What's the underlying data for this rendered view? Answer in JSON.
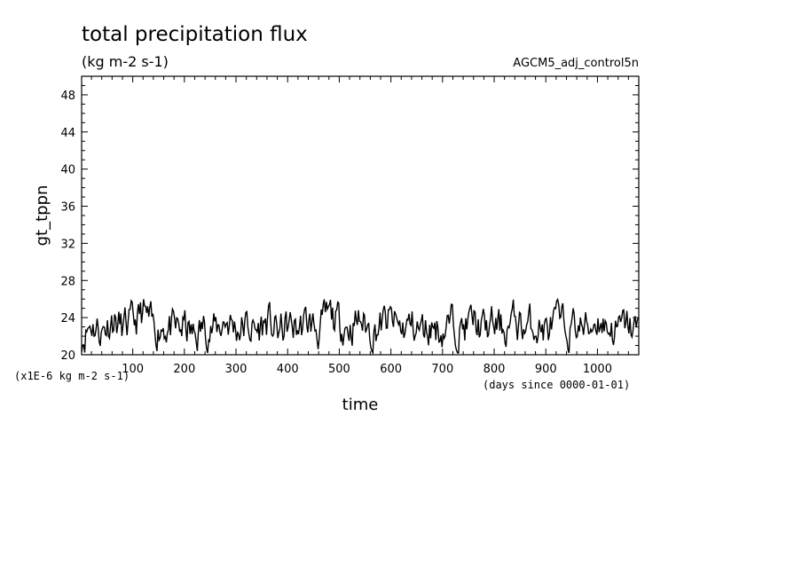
{
  "chart_data": {
    "type": "line",
    "title": "total precipitation flux",
    "subtitle": "(kg m-2 s-1)",
    "run_label": "AGCM5_adj_control5n",
    "xlabel": "time",
    "ylabel": "gt_tppn",
    "y_unit_note": "(x1E-6 kg m-2 s-1)",
    "x_unit_note": "(days since 0000-01-01)",
    "xlim": [
      1,
      1080
    ],
    "ylim": [
      20,
      50
    ],
    "xticks_labeled": [
      100,
      200,
      300,
      400,
      500,
      600,
      700,
      800,
      900,
      1000
    ],
    "yticks_labeled": [
      20,
      24,
      28,
      32,
      36,
      40,
      44,
      48
    ],
    "grid": false,
    "legend": "none",
    "line_color": "#000000",
    "series": [
      {
        "x": [
          1,
          20,
          40,
          60,
          80,
          100,
          120,
          140,
          160,
          180,
          200,
          220,
          240,
          260,
          280,
          300,
          320,
          340,
          360,
          380,
          400,
          420,
          440,
          460,
          480,
          500,
          520,
          540,
          560,
          580,
          600,
          620,
          640,
          660,
          680,
          700,
          720,
          740,
          760,
          780,
          800,
          820,
          840,
          860,
          880,
          900,
          920,
          940,
          960,
          980,
          1000,
          1020,
          1040,
          1060,
          1080
        ],
        "values": [
          22.0,
          23.5,
          22.5,
          24.0,
          22.8,
          23.2,
          24.5,
          22.6,
          23.4,
          22.4,
          23.0,
          21.8,
          23.2,
          22.6,
          23.8,
          22.9,
          23.1,
          22.5,
          23.6,
          22.4,
          23.0,
          22.8,
          23.5,
          22.6,
          24.2,
          23.4,
          23.0,
          23.8,
          22.6,
          23.1,
          23.7,
          22.7,
          23.2,
          22.5,
          23.3,
          22.6,
          23.4,
          22.9,
          23.6,
          22.6,
          23.2,
          22.8,
          23.7,
          22.9,
          23.3,
          22.6,
          23.5,
          22.8,
          23.2,
          22.7,
          24.0,
          23.0,
          22.5,
          23.3,
          22.4
        ]
      }
    ]
  }
}
